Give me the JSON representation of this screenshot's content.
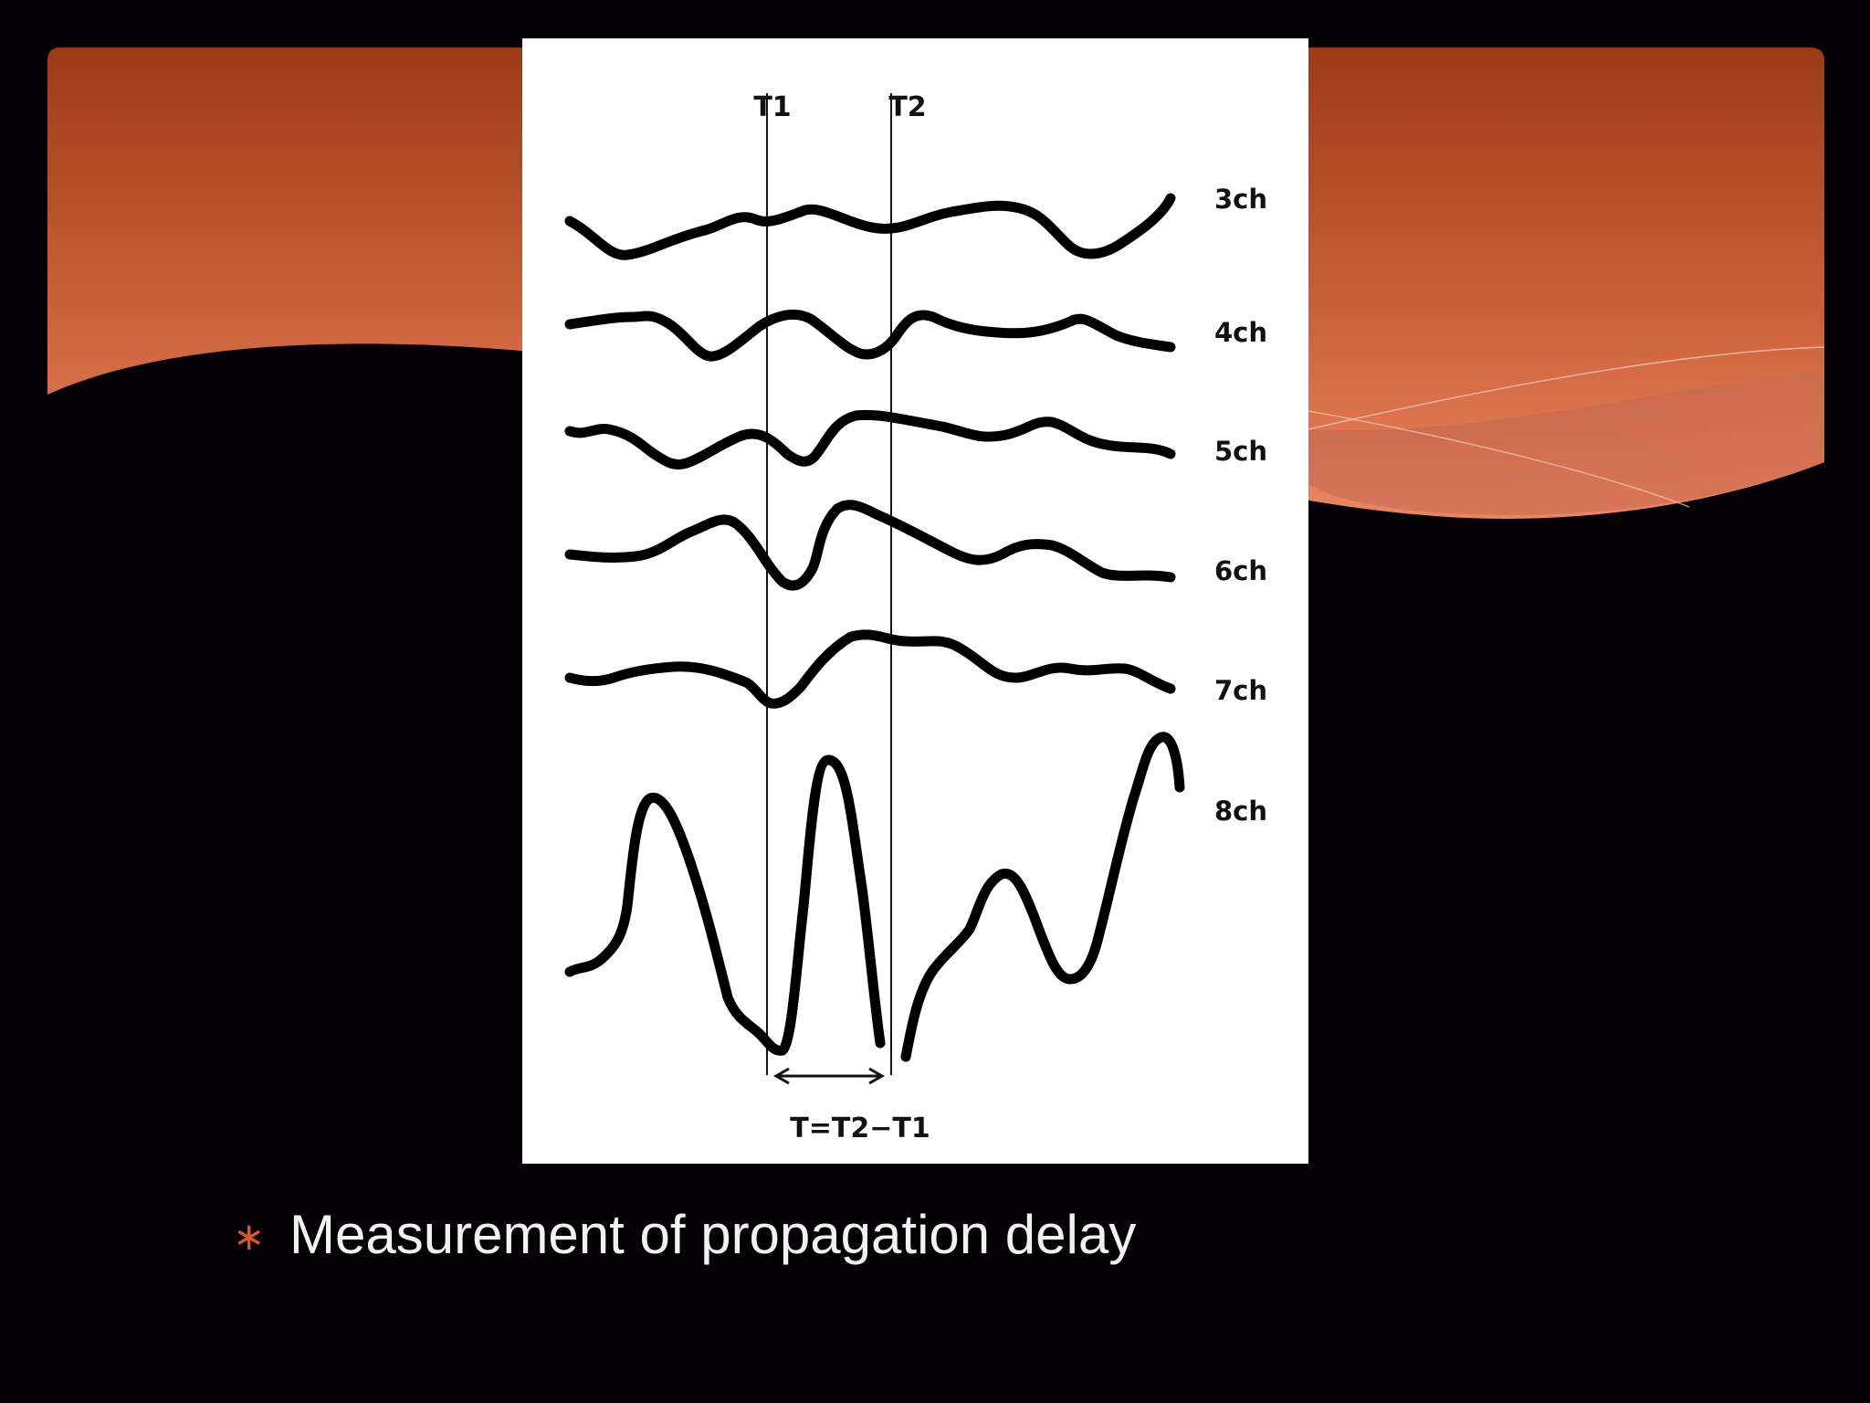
{
  "slide": {
    "bullet_symbol": "∗",
    "bullet_text": "Measurement of propagation delay"
  },
  "figure": {
    "marker_labels": [
      "T1",
      "T2"
    ],
    "formula": "T=T2−T1",
    "channels": [
      "3ch",
      "4ch",
      "5ch",
      "6ch",
      "7ch",
      "8ch"
    ]
  },
  "colors": {
    "background": "#030103",
    "banner_top": "#9c3a18",
    "banner_bottom": "#e57a55",
    "bullet": "#d9552b",
    "text": "#f2f2f2",
    "trace": "#000000"
  }
}
